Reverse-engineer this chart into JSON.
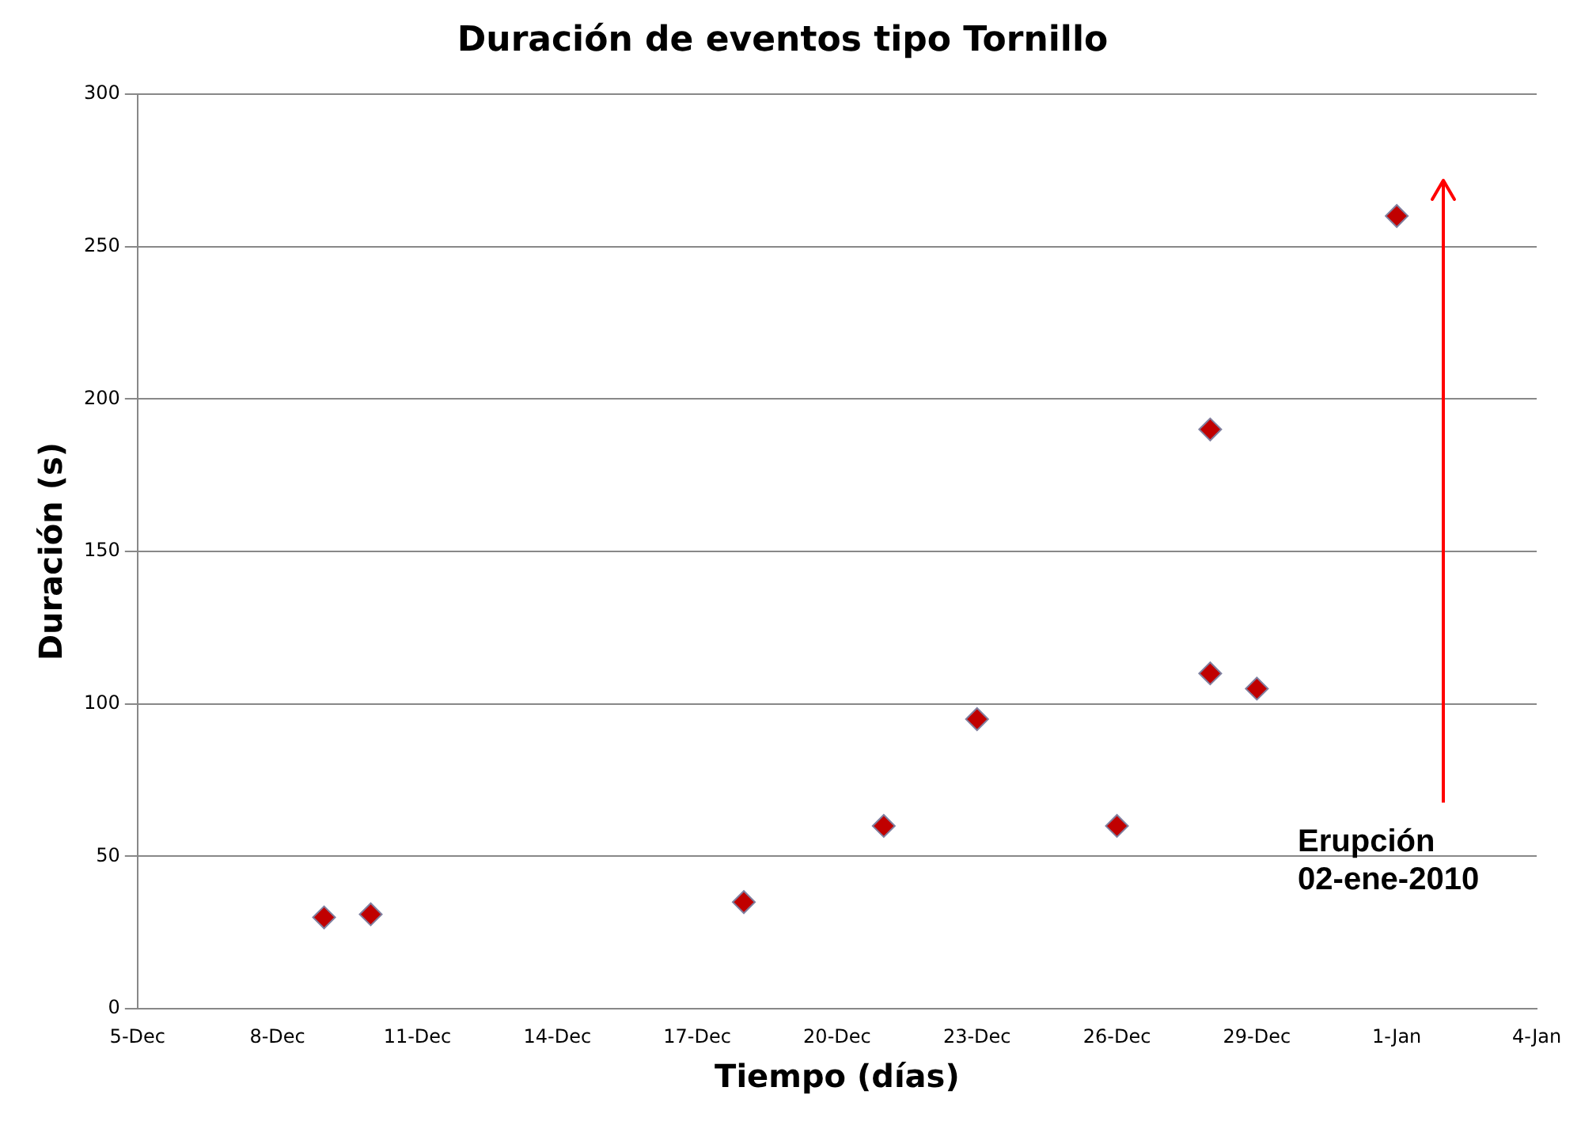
{
  "chart_data": {
    "type": "scatter",
    "title": "Duración de eventos tipo Tornillo",
    "xlabel": "Tiempo (días)",
    "ylabel": "Duración (s)",
    "x": [
      "2009-12-09",
      "2009-12-10",
      "2009-12-18",
      "2009-12-21",
      "2009-12-23",
      "2009-12-26",
      "2009-12-28",
      "2009-12-28",
      "2009-12-29",
      "2010-01-01"
    ],
    "series": [
      {
        "color": "#c00000",
        "values": [
          30,
          31,
          35,
          60,
          95,
          60,
          190,
          110,
          105,
          260
        ]
      }
    ],
    "marker": "diamond",
    "legend": false,
    "grid": "y",
    "xlim": [
      "2009-12-05",
      "2010-01-04"
    ],
    "xticks": [
      {
        "value": "2009-12-05",
        "label": "5-Dec"
      },
      {
        "value": "2009-12-08",
        "label": "8-Dec"
      },
      {
        "value": "2009-12-11",
        "label": "11-Dec"
      },
      {
        "value": "2009-12-14",
        "label": "14-Dec"
      },
      {
        "value": "2009-12-17",
        "label": "17-Dec"
      },
      {
        "value": "2009-12-20",
        "label": "20-Dec"
      },
      {
        "value": "2009-12-23",
        "label": "23-Dec"
      },
      {
        "value": "2009-12-26",
        "label": "26-Dec"
      },
      {
        "value": "2009-12-29",
        "label": "29-Dec"
      },
      {
        "value": "2010-01-01",
        "label": "1-Jan"
      },
      {
        "value": "2010-01-04",
        "label": "4-Jan"
      }
    ],
    "ylim": [
      0,
      300
    ],
    "yticks": [
      0,
      50,
      100,
      150,
      200,
      250,
      300
    ],
    "ref_lines": [
      {
        "axis": "x",
        "value": "2010-01-02",
        "label": "Erupción\n02-ene-2010",
        "color": "#ff0000"
      }
    ]
  }
}
